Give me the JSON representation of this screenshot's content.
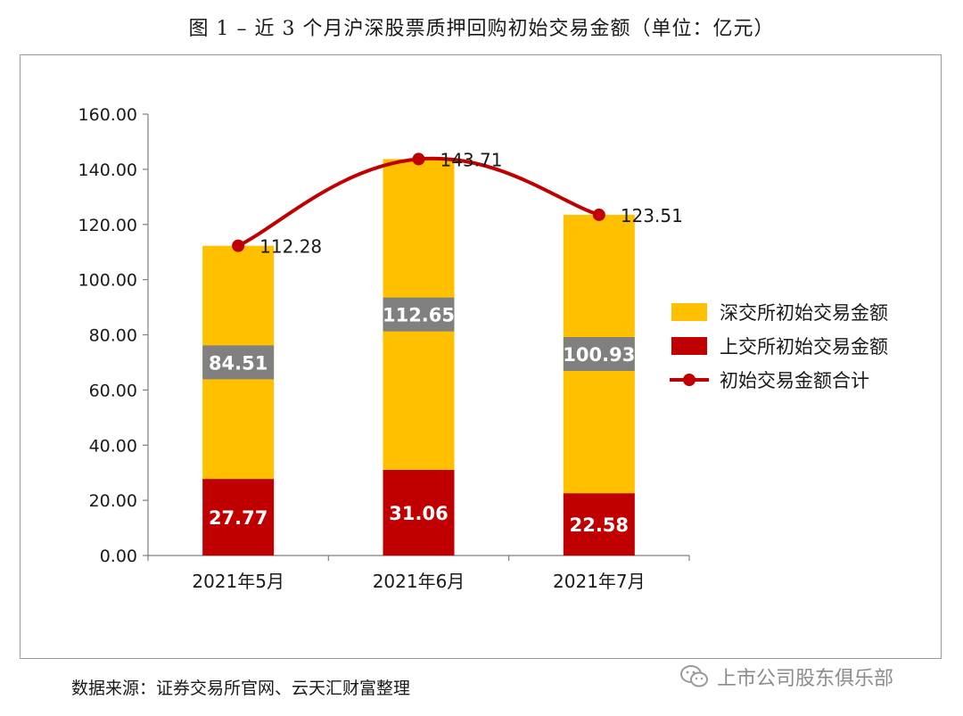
{
  "title": "图 1 –  近 3 个月沪深股票质押回购初始交易金额（单位：亿元）",
  "source": "数据来源：证券交易所官网、云天汇财富整理",
  "watermark": "上市公司股东俱乐部",
  "chart_data": {
    "type": "bar",
    "stacked": true,
    "categories": [
      "2021年5月",
      "2021年6月",
      "2021年7月"
    ],
    "series": [
      {
        "name": "上交所初始交易金额",
        "values": [
          27.77,
          31.06,
          22.58
        ],
        "color": "#C00000"
      },
      {
        "name": "深交所初始交易金额",
        "values": [
          84.51,
          112.65,
          100.93
        ],
        "color": "#FFC000"
      }
    ],
    "total_line": {
      "name": "初始交易金额合计",
      "values": [
        112.28,
        143.71,
        123.51
      ],
      "color": "#C00000"
    },
    "y_ticks": [
      "0.00",
      "20.00",
      "40.00",
      "60.00",
      "80.00",
      "100.00",
      "120.00",
      "140.00",
      "160.00"
    ],
    "ylim": [
      0,
      160
    ],
    "legend_position": "right",
    "grid": false
  }
}
